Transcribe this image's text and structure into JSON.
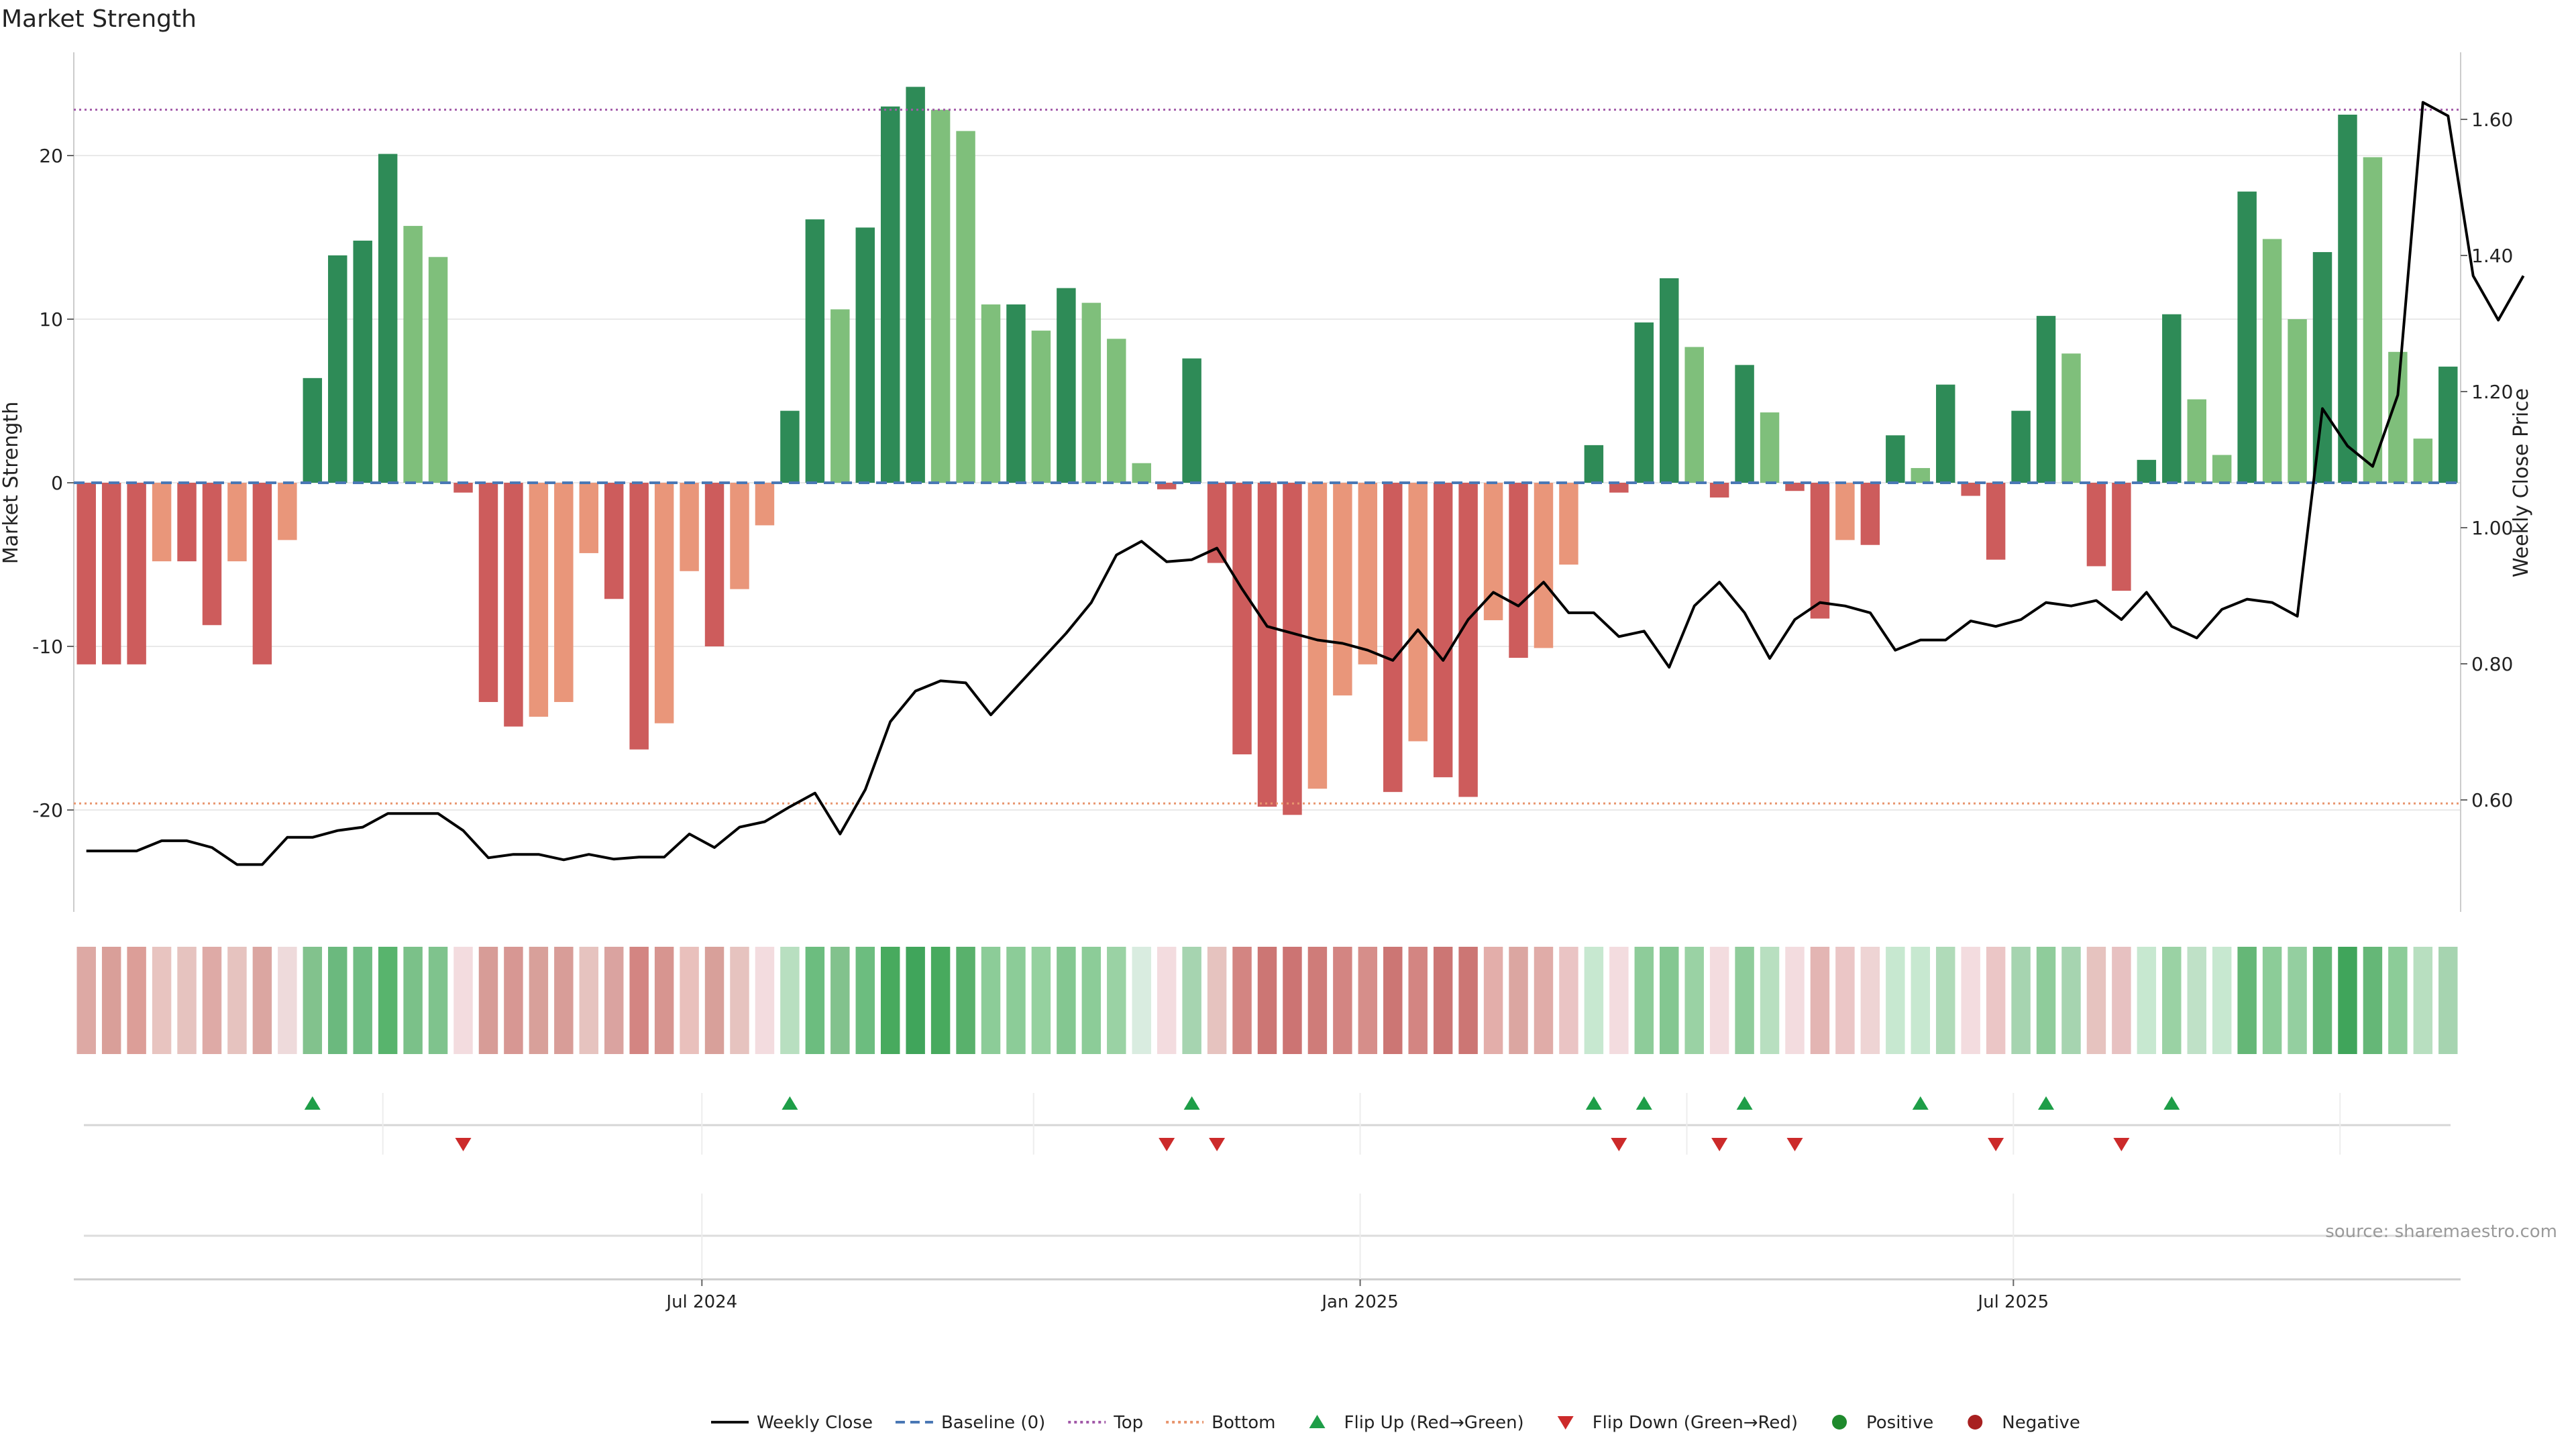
{
  "chart_data": {
    "type": "bar",
    "title": "Market Strength",
    "ylabel": "Market Strength",
    "y2label": "Weekly Close Price",
    "ylim": [
      -26,
      27
    ],
    "y2lim": [
      0.44,
      1.66
    ],
    "yticks": [
      -20,
      -10,
      0,
      10,
      20
    ],
    "y2ticks": [
      0.6,
      0.8,
      1.0,
      1.2,
      1.4,
      1.6
    ],
    "y2tick_labels": [
      "0.60",
      "0.80",
      "1.00",
      "1.20",
      "1.40",
      "1.60"
    ],
    "top_line": 22.8,
    "bottom_line": -19.6,
    "baseline": 0,
    "x_ticks": [
      {
        "index": 25,
        "label": "Jul 2024"
      },
      {
        "index": 51.2,
        "label": "Jan 2025"
      },
      {
        "index": 77.2,
        "label": "Jul 2025"
      }
    ],
    "strength": [
      -11.1,
      -11.1,
      -11.1,
      -4.8,
      -4.8,
      -8.7,
      -4.8,
      -11.1,
      -3.5,
      6.4,
      13.9,
      14.8,
      20.1,
      15.7,
      13.8,
      -0.6,
      -13.4,
      -14.9,
      -14.3,
      -13.4,
      -4.3,
      -7.1,
      -16.3,
      -14.7,
      -5.4,
      -10.0,
      -6.5,
      -2.6,
      4.4,
      16.1,
      10.6,
      15.6,
      23.0,
      24.2,
      22.8,
      21.5,
      10.9,
      10.9,
      9.3,
      11.9,
      11.0,
      8.8,
      1.2,
      -0.4,
      7.6,
      -4.9,
      -16.6,
      -19.8,
      -20.3,
      -18.7,
      -13.0,
      -11.1,
      -18.9,
      -15.8,
      -18.0,
      -19.2,
      -8.4,
      -10.7,
      -10.1,
      -5.0,
      2.3,
      -0.6,
      9.8,
      12.5,
      8.3,
      -0.9,
      7.2,
      4.3,
      -0.5,
      -8.3,
      -3.5,
      -3.8,
      2.9,
      0.9,
      6.0,
      -0.8,
      -4.7,
      4.4,
      10.2,
      7.9,
      -5.1,
      -6.6,
      1.4,
      10.3,
      5.1,
      1.7,
      17.8,
      14.9,
      10.0,
      14.1,
      22.5,
      19.9,
      8.0,
      2.7,
      7.1
    ],
    "series": [
      {
        "name": "Weekly Close",
        "values": [
          0.525,
          0.525,
          0.525,
          0.54,
          0.54,
          0.53,
          0.505,
          0.505,
          0.545,
          0.545,
          0.555,
          0.56,
          0.58,
          0.58,
          0.58,
          0.555,
          0.515,
          0.52,
          0.52,
          0.512,
          0.52,
          0.513,
          0.516,
          0.516,
          0.55,
          0.53,
          0.56,
          0.568,
          0.59,
          0.61,
          0.55,
          0.615,
          0.715,
          0.76,
          0.775,
          0.772,
          0.725,
          0.765,
          0.805,
          0.845,
          0.89,
          0.96,
          0.98,
          0.95,
          0.953,
          0.97,
          0.91,
          0.855,
          0.845,
          0.835,
          0.83,
          0.82,
          0.805,
          0.85,
          0.805,
          0.865,
          0.905,
          0.885,
          0.92,
          0.875,
          0.875,
          0.84,
          0.848,
          0.795,
          0.885,
          0.92,
          0.875,
          0.808,
          0.865,
          0.89,
          0.885,
          0.875,
          0.82,
          0.835,
          0.835,
          0.863,
          0.855,
          0.865,
          0.89,
          0.885,
          0.893,
          0.865,
          0.905,
          0.855,
          0.838,
          0.88,
          0.895,
          0.89,
          0.87,
          1.175,
          1.12,
          1.09,
          1.195,
          1.625,
          1.605,
          1.37,
          1.305,
          1.37
        ]
      }
    ],
    "heat_colors": [
      "#dda9a4",
      "#d99f99",
      "#dc9e98",
      "#e8c4c0",
      "#e6c3bf",
      "#deaaa6",
      "#e6c3bf",
      "#dba6a1",
      "#eedadb",
      "#82c28d",
      "#6bb97e",
      "#70bd83",
      "#58b46d",
      "#7bc189",
      "#7fc38d",
      "#f3dcdf",
      "#d79c97",
      "#d79793",
      "#d8a09a",
      "#d89d98",
      "#e6c3bf",
      "#daa3a0",
      "#d38582",
      "#d79590",
      "#e9c0bc",
      "#d8a09a",
      "#e6c3bf",
      "#f3dcdf",
      "#b8dfc0",
      "#6cbd7f",
      "#82c28d",
      "#6cbd7f",
      "#48aa5e",
      "#40a55b",
      "#48aa5e",
      "#59b16c",
      "#8ccc98",
      "#8ccc98",
      "#95d19f",
      "#84c791",
      "#8ccc98",
      "#9ad2a4",
      "#d9ece0",
      "#f3dcdf",
      "#a6d4b0",
      "#e6c3bf",
      "#d38582",
      "#cc7674",
      "#cc7473",
      "#cf7c79",
      "#d38582",
      "#d68e8a",
      "#cc7674",
      "#d38582",
      "#cc7674",
      "#cc7674",
      "#e3aeaa",
      "#dba6a1",
      "#e0aca8",
      "#eac4c4",
      "#c7e8d0",
      "#f3dcdf",
      "#8ecc9a",
      "#84c791",
      "#9ad2a4",
      "#f3dcdf",
      "#8fcc9b",
      "#b8dfc0",
      "#f3dcdf",
      "#e3b5b3",
      "#ebc6c6",
      "#eed4d4",
      "#c7e8d0",
      "#c7e8d0",
      "#b0dbb9",
      "#f3dcdf",
      "#ebc6c6",
      "#a6d4b0",
      "#8fcc9b",
      "#a6d4b0",
      "#e6c3bf",
      "#e7c1c1",
      "#c7e8d0",
      "#9ad2a4",
      "#bfe1c7",
      "#c7e8d0",
      "#65b777",
      "#8ccc98",
      "#94cfa0",
      "#65b777",
      "#40a55b",
      "#65b777",
      "#8ccc98",
      "#b8dfc0",
      "#a6d4b0"
    ],
    "flip_up_indices": [
      9,
      28,
      44,
      60,
      62,
      66,
      73,
      78,
      83
    ],
    "flip_down_indices": [
      15,
      43,
      45,
      61,
      65,
      68,
      76,
      81
    ],
    "legend": [
      {
        "type": "line",
        "label": "Weekly Close",
        "color": "#111111"
      },
      {
        "type": "dashed",
        "label": "Baseline (0)",
        "color": "#4a78b5"
      },
      {
        "type": "dotted",
        "label": "Top",
        "color": "#a25aa8"
      },
      {
        "type": "dotted",
        "label": "Bottom",
        "color": "#e8956e"
      },
      {
        "type": "triangle-up",
        "label": "Flip Up (Red→Green)",
        "color": "#1e9e48"
      },
      {
        "type": "triangle-down",
        "label": "Flip Down (Green→Red)",
        "color": "#cc2a2a"
      },
      {
        "type": "circle",
        "label": "Positive",
        "color": "#1f8a2d"
      },
      {
        "type": "circle",
        "label": "Negative",
        "color": "#a82020"
      }
    ],
    "source": "source: sharemaestro.com"
  },
  "colors": {
    "pos_strong": "#2e8b57",
    "pos_weak": "#7fbf7b",
    "neg_strong": "#cd5c5c",
    "neg_weak": "#e9967a",
    "price_line": "#000000",
    "grid": "#e9e9e9",
    "axis": "#cccccc",
    "tick_text": "#222222"
  }
}
